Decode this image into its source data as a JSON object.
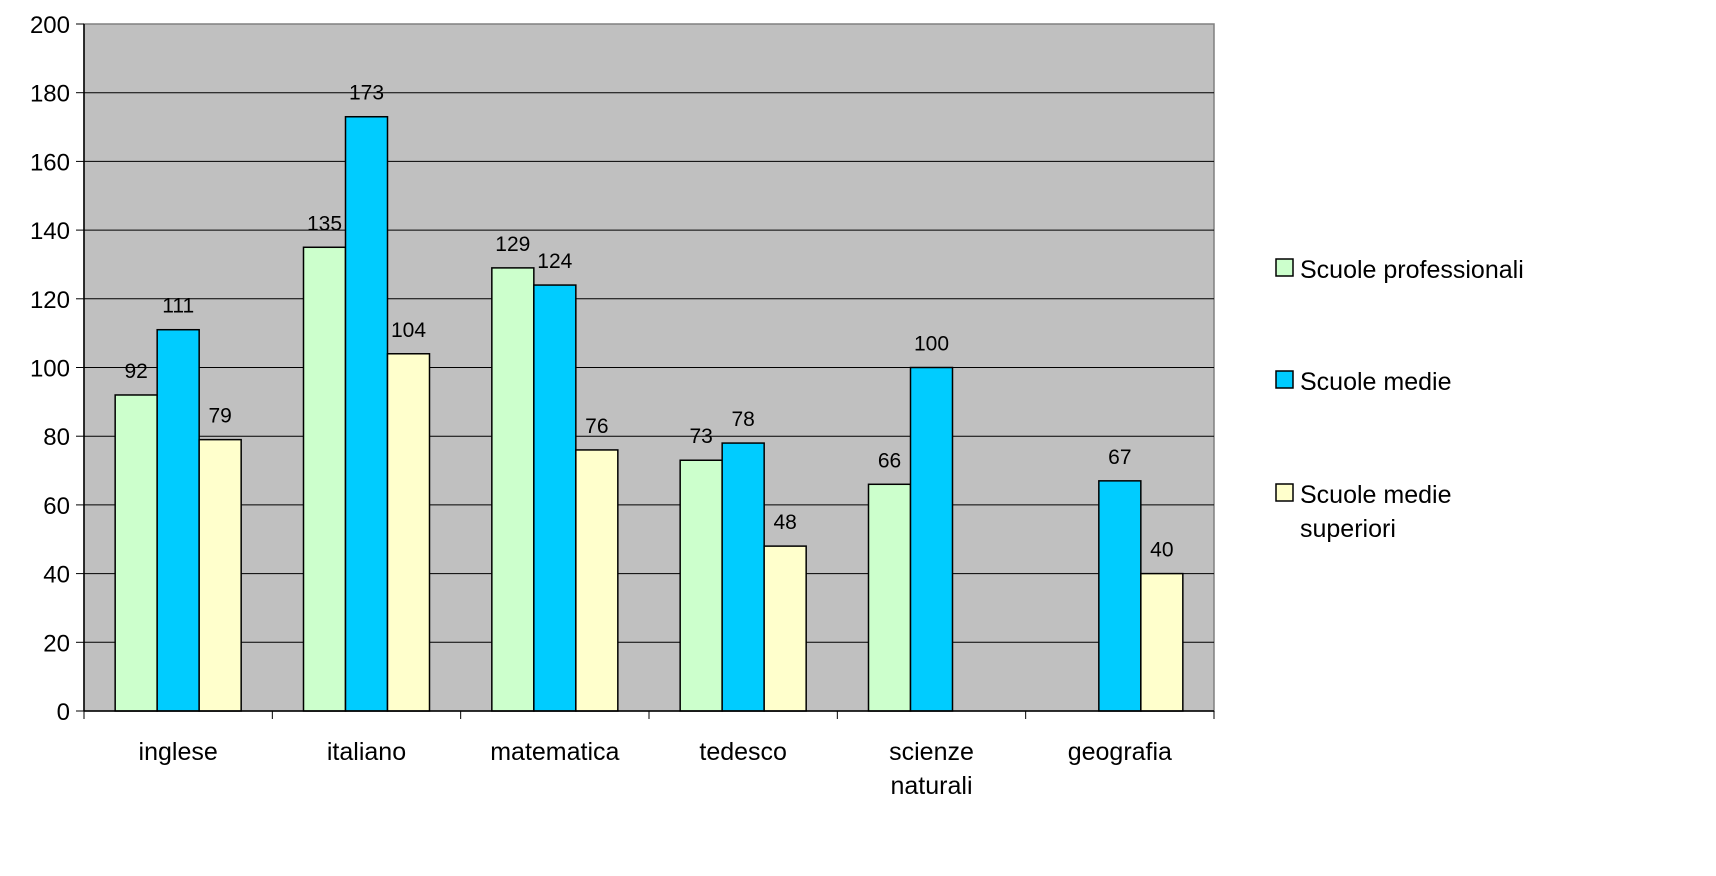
{
  "chart_data": {
    "type": "bar",
    "categories": [
      [
        "inglese"
      ],
      [
        "italiano"
      ],
      [
        "matematica"
      ],
      [
        "tedesco"
      ],
      [
        "scienze",
        "naturali"
      ],
      [
        "geografia"
      ]
    ],
    "series": [
      {
        "name": "Scuole professionali",
        "color": "#ccffcc",
        "values": [
          92,
          135,
          129,
          73,
          66,
          null
        ]
      },
      {
        "name": "Scuole medie",
        "color": "#00ccff",
        "values": [
          111,
          173,
          124,
          78,
          100,
          67
        ]
      },
      {
        "name": "Scuole medie superiori",
        "color": "#ffffcc",
        "values": [
          79,
          104,
          76,
          48,
          null,
          40
        ]
      }
    ],
    "legend_labels": [
      [
        "Scuole professionali"
      ],
      [
        "Scuole medie"
      ],
      [
        "Scuole medie",
        "superiori"
      ]
    ],
    "ylim": [
      0,
      200
    ],
    "yticks": [
      0,
      20,
      40,
      60,
      80,
      100,
      120,
      140,
      160,
      180,
      200
    ],
    "plot_background": "#c0c0c0",
    "grid": true,
    "legend_position": "right",
    "data_labels": true
  }
}
